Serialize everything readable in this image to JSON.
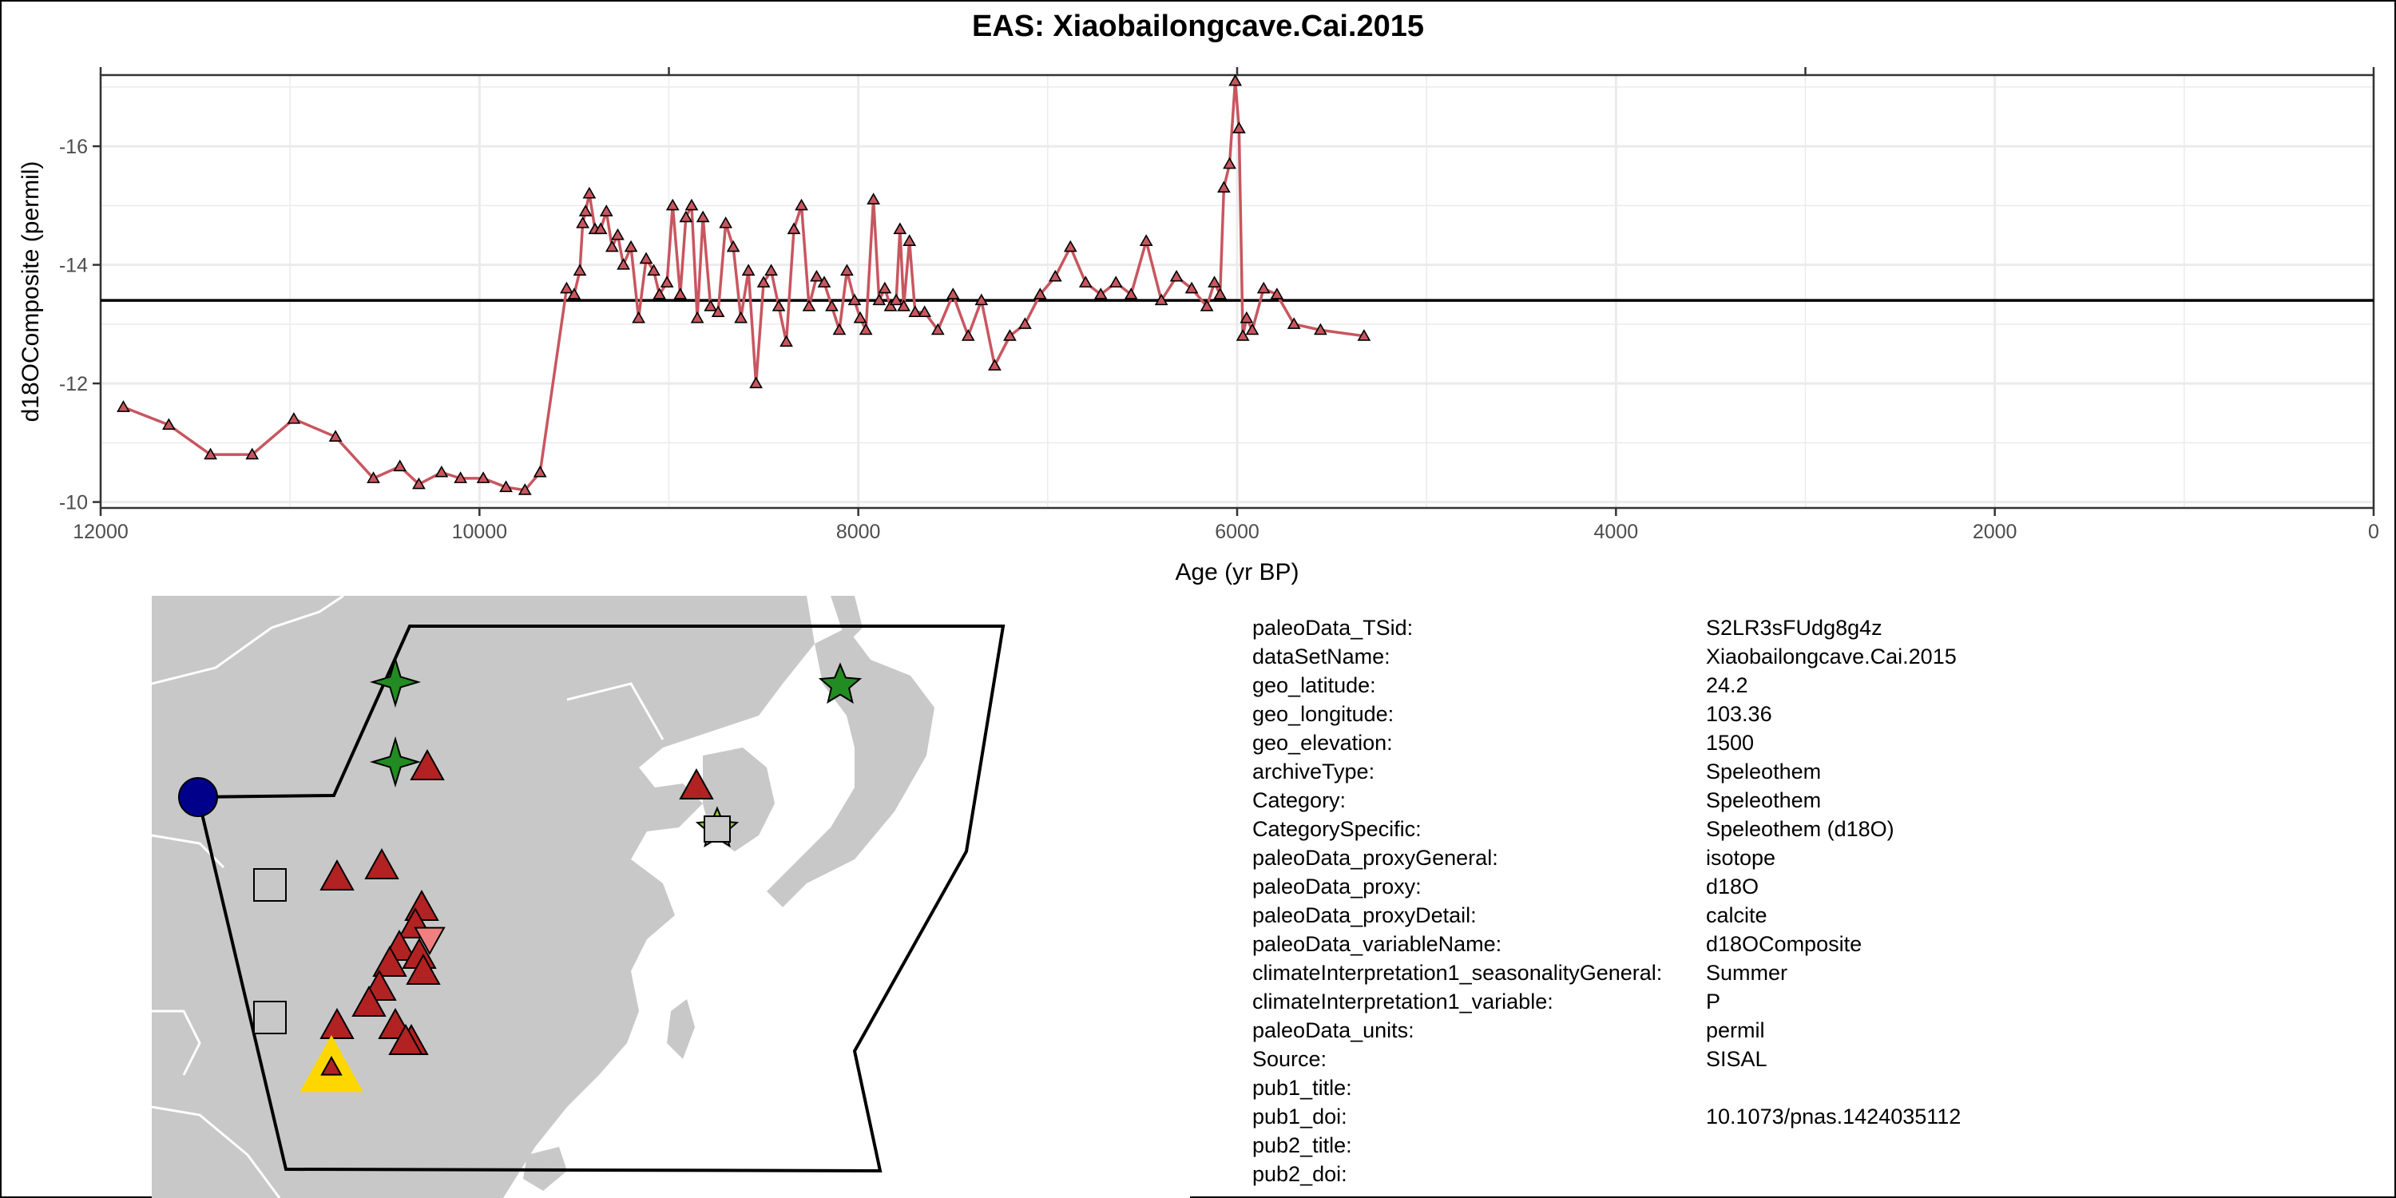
{
  "title": "EAS: Xiaobailongcave.Cai.2015",
  "chart_data": {
    "type": "line",
    "xlabel": "Age (yr BP)",
    "ylabel": "d18OComposite (permil)",
    "xlim": [
      12000,
      0
    ],
    "ylim": [
      -17.2,
      -9.9
    ],
    "y_reversed": true,
    "x_ticks": [
      12000,
      10000,
      8000,
      6000,
      4000,
      2000,
      0
    ],
    "y_ticks": [
      -16,
      -14,
      -12,
      -10
    ],
    "grid": true,
    "reference_line_y": -13.4,
    "series": [
      {
        "marker": "triangle",
        "color": "#c8565f",
        "x": [
          11880,
          11640,
          11420,
          11200,
          10980,
          10760,
          10560,
          10420,
          10320,
          10200,
          10100,
          9980,
          9860,
          9760,
          9680,
          9540,
          9500,
          9470,
          9455,
          9440,
          9420,
          9390,
          9360,
          9330,
          9300,
          9270,
          9240,
          9200,
          9160,
          9120,
          9080,
          9050,
          9010,
          8980,
          8940,
          8910,
          8880,
          8850,
          8820,
          8780,
          8740,
          8700,
          8660,
          8620,
          8580,
          8540,
          8500,
          8460,
          8420,
          8380,
          8340,
          8300,
          8260,
          8220,
          8180,
          8140,
          8100,
          8060,
          8020,
          7990,
          7960,
          7920,
          7890,
          7860,
          7830,
          7800,
          7780,
          7760,
          7730,
          7700,
          7650,
          7580,
          7500,
          7420,
          7350,
          7280,
          7200,
          7120,
          7040,
          6960,
          6880,
          6800,
          6720,
          6640,
          6560,
          6480,
          6400,
          6320,
          6240,
          6160,
          6120,
          6090,
          6070,
          6040,
          6010,
          5990,
          5970,
          5950,
          5920,
          5860,
          5790,
          5700,
          5560,
          5330
        ],
        "y": [
          -11.6,
          -11.3,
          -10.8,
          -10.8,
          -11.4,
          -11.1,
          -10.4,
          -10.6,
          -10.3,
          -10.5,
          -10.4,
          -10.4,
          -10.25,
          -10.2,
          -10.5,
          -13.6,
          -13.5,
          -13.9,
          -14.7,
          -14.9,
          -15.2,
          -14.6,
          -14.6,
          -14.9,
          -14.3,
          -14.5,
          -14.0,
          -14.3,
          -13.1,
          -14.1,
          -13.9,
          -13.5,
          -13.7,
          -15.0,
          -13.5,
          -14.8,
          -15.0,
          -13.1,
          -14.8,
          -13.3,
          -13.2,
          -14.7,
          -14.3,
          -13.1,
          -13.9,
          -12.0,
          -13.7,
          -13.9,
          -13.3,
          -12.7,
          -14.6,
          -15.0,
          -13.3,
          -13.8,
          -13.7,
          -13.3,
          -12.9,
          -13.9,
          -13.4,
          -13.1,
          -12.9,
          -15.1,
          -13.4,
          -13.6,
          -13.3,
          -13.4,
          -14.6,
          -13.3,
          -14.4,
          -13.2,
          -13.2,
          -12.9,
          -13.5,
          -12.8,
          -13.4,
          -12.3,
          -12.8,
          -13.0,
          -13.5,
          -13.8,
          -14.3,
          -13.7,
          -13.5,
          -13.7,
          -13.5,
          -14.4,
          -13.4,
          -13.8,
          -13.6,
          -13.3,
          -13.7,
          -13.5,
          -15.3,
          -15.7,
          -17.1,
          -16.3,
          -12.8,
          -13.1,
          -12.9,
          -13.6,
          -13.5,
          -13.0,
          -12.9,
          -12.8
        ]
      }
    ]
  },
  "map": {
    "land_color": "#c8c8c8",
    "markers": [
      {
        "shape": "circle",
        "color": "#00008b"
      },
      {
        "shape": "square",
        "color": "#c8c8c8"
      },
      {
        "shape": "square",
        "color": "#c8c8c8"
      },
      {
        "shape": "star4",
        "color": "#228b22"
      },
      {
        "shape": "star4",
        "color": "#228b22"
      },
      {
        "shape": "star",
        "color": "#228b22"
      },
      {
        "shape": "star",
        "color": "#9acd32"
      },
      {
        "shape": "square",
        "color": "#c8c8c8"
      },
      {
        "shape": "triangle",
        "color": "#b22222"
      },
      {
        "shape": "triangle",
        "color": "#b22222"
      },
      {
        "shape": "triangle",
        "color": "#b22222"
      },
      {
        "shape": "triangle",
        "color": "#b22222"
      },
      {
        "shape": "triangle",
        "color": "#b22222"
      },
      {
        "shape": "triangle",
        "color": "#b22222"
      },
      {
        "shape": "triangle",
        "color": "#b22222"
      },
      {
        "shape": "triangle",
        "color": "#b22222"
      },
      {
        "shape": "triangle",
        "color": "#b22222"
      },
      {
        "shape": "triangle",
        "color": "#b22222"
      },
      {
        "shape": "triangle",
        "color": "#b22222"
      },
      {
        "shape": "triangle",
        "color": "#b22222"
      },
      {
        "shape": "triangle",
        "color": "#b22222"
      },
      {
        "shape": "triangle",
        "color": "#b22222"
      },
      {
        "shape": "triangle",
        "color": "#b22222"
      },
      {
        "shape": "triangle",
        "color": "#b22222"
      },
      {
        "shape": "triangle-down",
        "color": "#f08080"
      },
      {
        "shape": "triangle",
        "color": "#ffd700"
      },
      {
        "shape": "triangle",
        "color": "#b22222"
      }
    ]
  },
  "metadata": [
    {
      "key": "paleoData_TSid:",
      "value": "S2LR3sFUdg8g4z"
    },
    {
      "key": "dataSetName:",
      "value": "Xiaobailongcave.Cai.2015"
    },
    {
      "key": "geo_latitude:",
      "value": "24.2"
    },
    {
      "key": "geo_longitude:",
      "value": "103.36"
    },
    {
      "key": "geo_elevation:",
      "value": "1500"
    },
    {
      "key": "archiveType:",
      "value": "Speleothem"
    },
    {
      "key": "Category:",
      "value": "Speleothem"
    },
    {
      "key": "CategorySpecific:",
      "value": "Speleothem (d18O)"
    },
    {
      "key": "paleoData_proxyGeneral:",
      "value": "isotope"
    },
    {
      "key": "paleoData_proxy:",
      "value": "d18O"
    },
    {
      "key": "paleoData_proxyDetail:",
      "value": "calcite"
    },
    {
      "key": "paleoData_variableName:",
      "value": "d18OComposite"
    },
    {
      "key": "climateInterpretation1_seasonalityGeneral:",
      "value": "Summer"
    },
    {
      "key": "climateInterpretation1_variable:",
      "value": "P"
    },
    {
      "key": "paleoData_units:",
      "value": "permil"
    },
    {
      "key": "Source:",
      "value": "SISAL"
    },
    {
      "key": "pub1_title:",
      "value": ""
    },
    {
      "key": "pub1_doi:",
      "value": "10.1073/pnas.1424035112"
    },
    {
      "key": "pub2_title:",
      "value": ""
    },
    {
      "key": "pub2_doi:",
      "value": ""
    }
  ]
}
